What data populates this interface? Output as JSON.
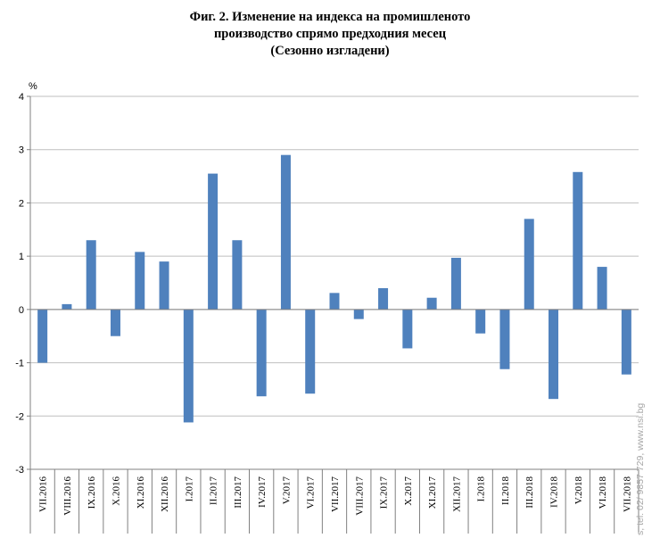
{
  "title_lines": [
    "Фиг. 2. Изменение на индекса на промишленото",
    "производство спрямо предходния месец",
    "(Сезонно изгладени)"
  ],
  "side_note": "s, tel. 02/ 9857 729, www.nsi.bg",
  "chart_data": {
    "type": "bar",
    "ylabel": "%",
    "ylim": [
      -3,
      4
    ],
    "yticks": [
      -3,
      -2,
      -1,
      0,
      1,
      2,
      3,
      4
    ],
    "grid": true,
    "bar_color": "#4f81bd",
    "grid_color": "#bfbfbf",
    "categories": [
      "VII.2016",
      "VIII.2016",
      "IX.2016",
      "X.2016",
      "XI.2016",
      "XII.2016",
      "I.2017",
      "II.2017",
      "III.2017",
      "IV.2017",
      "V.2017",
      "VI.2017",
      "VII.2017",
      "VIII.2017",
      "IX.2017",
      "X.2017",
      "XI.2017",
      "XII.2017",
      "I.2018",
      "II.2018",
      "III.2018",
      "IV.2018",
      "V.2018",
      "VI.2018",
      "VII.2018"
    ],
    "values": [
      -1.0,
      0.1,
      1.3,
      -0.5,
      1.08,
      0.9,
      -2.12,
      2.55,
      1.3,
      -1.63,
      2.9,
      -1.58,
      0.31,
      -0.18,
      0.4,
      -0.73,
      0.22,
      0.97,
      -0.45,
      -1.12,
      1.7,
      -1.68,
      2.58,
      0.8,
      -1.22
    ]
  }
}
